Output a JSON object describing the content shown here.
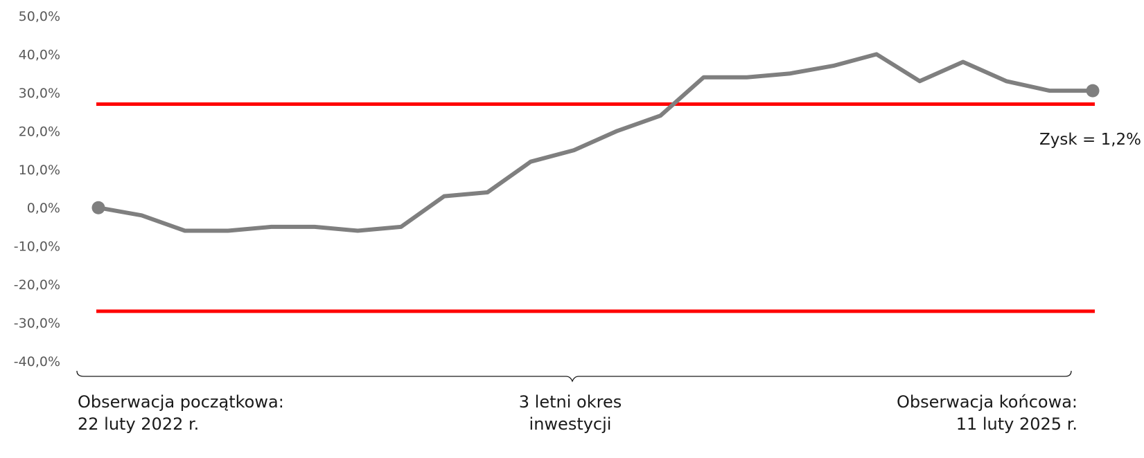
{
  "chart_data": {
    "type": "line",
    "title": "",
    "xlabel": "",
    "ylabel": "",
    "ylim": [
      -40,
      50
    ],
    "y_ticks": [
      "50,0%",
      "40,0%",
      "30,0%",
      "20,0%",
      "10,0%",
      "0,0%",
      "-10,0%",
      "-20,0%",
      "-30,0%",
      "-40,0%"
    ],
    "y_tick_values": [
      50,
      40,
      30,
      20,
      10,
      0,
      -10,
      -20,
      -30,
      -40
    ],
    "grid": false,
    "legend": "none",
    "series": [
      {
        "color": "#7f7f7f",
        "x": [
          0,
          1,
          2,
          3,
          4,
          5,
          6,
          7,
          8,
          9,
          10,
          11,
          12,
          13,
          14,
          15,
          16,
          17,
          18,
          19,
          20,
          21,
          22,
          23
        ],
        "values": [
          0.0,
          -2.0,
          -6.0,
          -6.0,
          -5.0,
          -5.0,
          -6.0,
          -5.0,
          3.0,
          4.0,
          12.0,
          15.0,
          20.0,
          24.0,
          34.0,
          34.0,
          35.0,
          37.0,
          40.0,
          33.0,
          38.0,
          33.0,
          30.5,
          30.5
        ],
        "endpoint_markers": true
      }
    ],
    "reference_lines": [
      {
        "value": 27,
        "color": "#ff0000"
      },
      {
        "value": -27,
        "color": "#ff0000"
      }
    ],
    "annotations": [
      {
        "text": "Zysk = 1,2%"
      }
    ]
  },
  "captions": {
    "start": {
      "line1": "Obserwacja początkowa:",
      "line2": "22 luty 2022 r."
    },
    "middle": {
      "line1": "3 letni okres",
      "line2": "inwestycji"
    },
    "end": {
      "line1": "Obserwacja końcowa:",
      "line2": "11 luty 2025 r."
    }
  }
}
